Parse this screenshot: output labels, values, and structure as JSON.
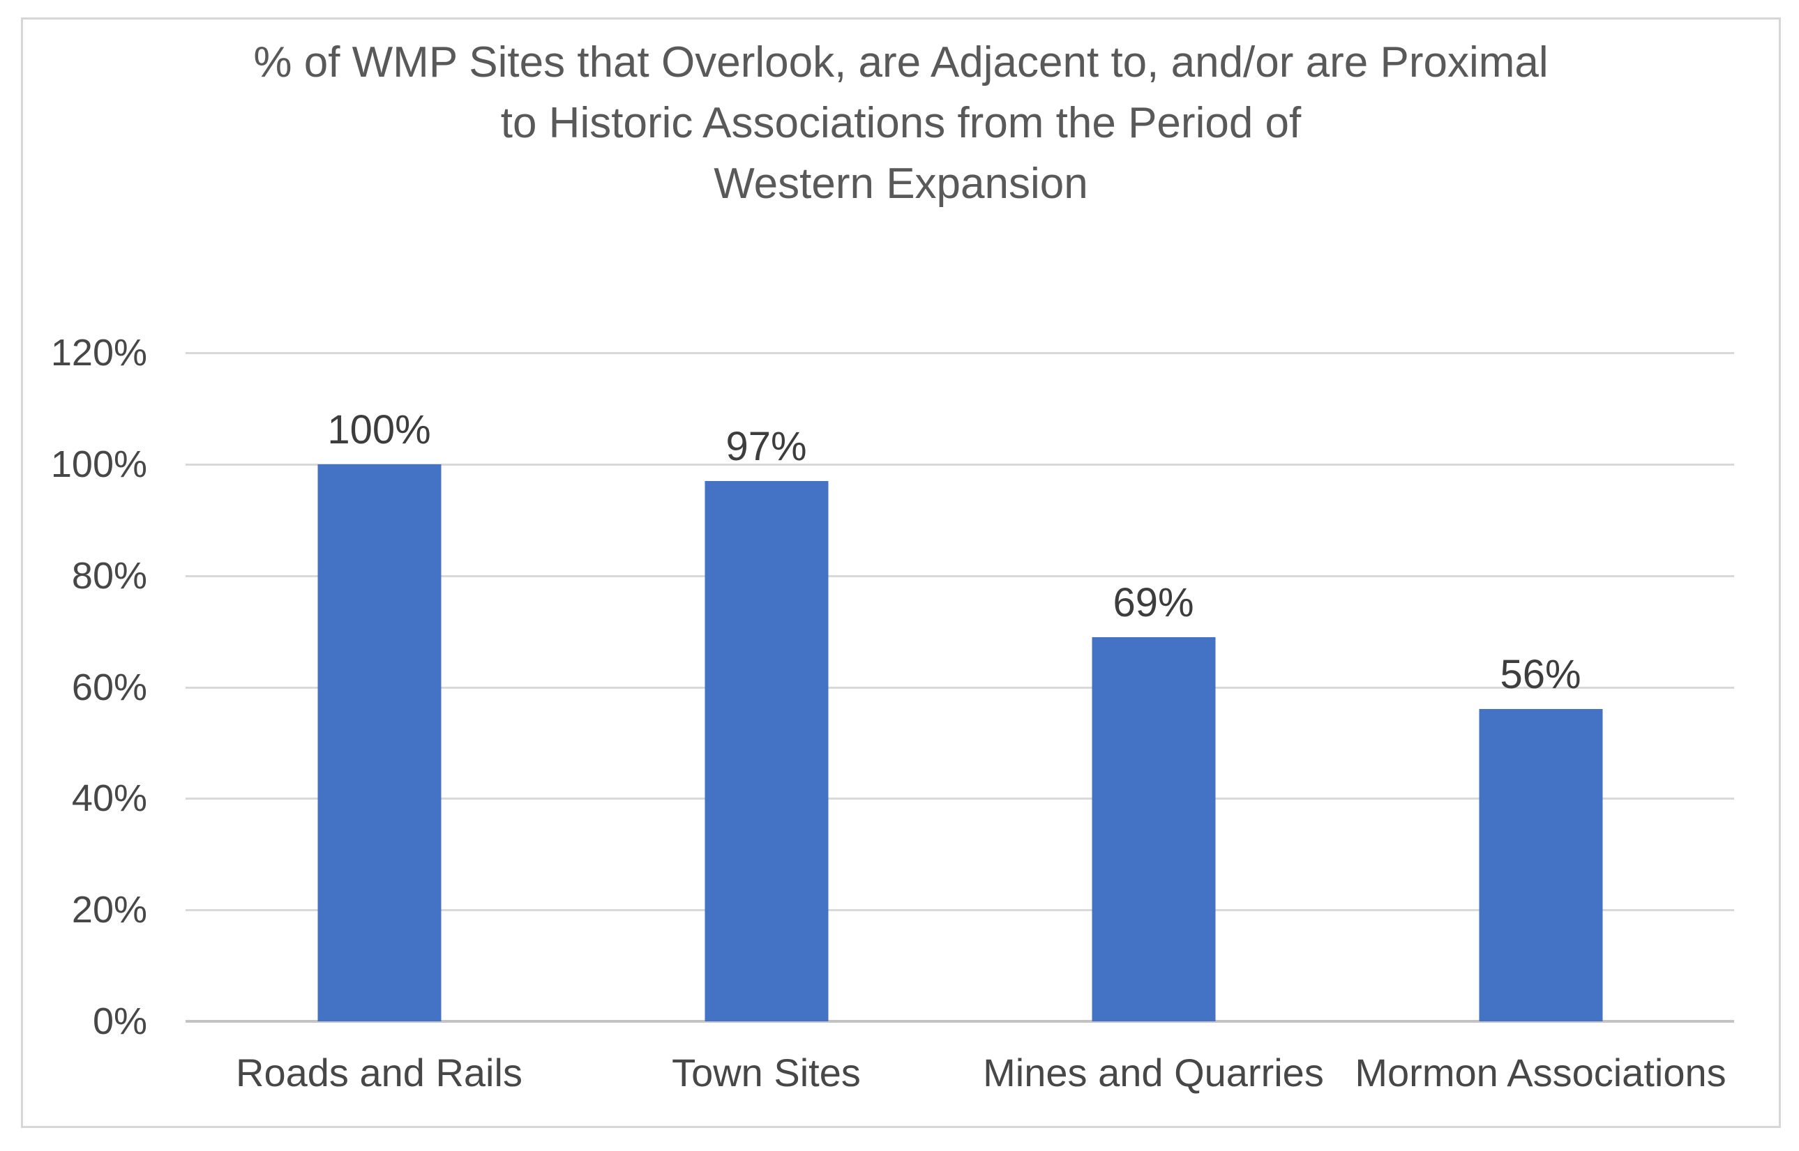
{
  "chart_data": {
    "type": "bar",
    "title": "% of WMP Sites that Overlook, are Adjacent to, and/or are Proximal to Historic Associations from the Period of Western Expansion",
    "title_lines": [
      "% of WMP Sites that Overlook, are Adjacent to, and/or are Proximal",
      "to Historic Associations from the Period of",
      "Western Expansion"
    ],
    "categories": [
      "Roads and Rails",
      "Town Sites",
      "Mines and Quarries",
      "Mormon Associations"
    ],
    "values": [
      100,
      97,
      69,
      56
    ],
    "data_labels": [
      "100%",
      "97%",
      "69%",
      "56%"
    ],
    "unit": "%",
    "xlabel": "",
    "ylabel": "",
    "ylim": [
      0,
      120
    ],
    "y_ticks": [
      {
        "value": 0,
        "label": "0%"
      },
      {
        "value": 20,
        "label": "20%"
      },
      {
        "value": 40,
        "label": "40%"
      },
      {
        "value": 60,
        "label": "60%"
      },
      {
        "value": 80,
        "label": "80%"
      },
      {
        "value": 100,
        "label": "100%"
      },
      {
        "value": 120,
        "label": "120%"
      }
    ],
    "grid": "horizontal",
    "legend": "none",
    "colors": {
      "bar": "#4472c4",
      "gridline": "#d9d9d9",
      "axis_line": "#c3c3c3",
      "title_text": "#595959",
      "axis_text": "#474747",
      "data_label_text": "#3d3d3d",
      "frame_border": "#d6d6d6",
      "background": "#ffffff"
    }
  }
}
